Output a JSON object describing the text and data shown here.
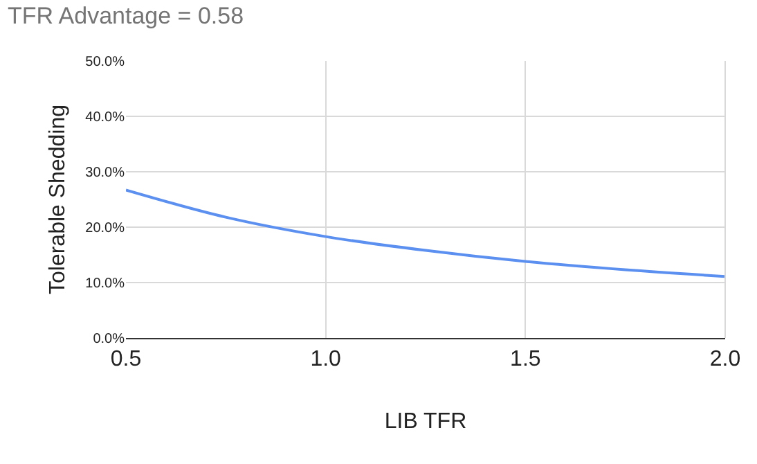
{
  "chart_data": {
    "type": "line",
    "title": "TFR Advantage = 0.58",
    "xlabel": "LIB TFR",
    "ylabel": "Tolerable Shedding",
    "x": [
      0.5,
      0.75,
      1.0,
      1.25,
      1.5,
      1.75,
      2.0
    ],
    "series": [
      {
        "color": "#5b8ff0",
        "values": [
          26.7,
          21.8,
          18.3,
          15.8,
          13.8,
          12.3,
          11.1
        ]
      }
    ],
    "xlim": [
      0.5,
      2.0
    ],
    "xticks": [
      0.5,
      {
        "value": 1.0,
        "label": "1.0"
      },
      1.5,
      {
        "value": 2.0,
        "label": "2.0"
      }
    ],
    "ylim": [
      0,
      50
    ],
    "yticks": [
      {
        "value": 0,
        "label": "0.0%"
      },
      {
        "value": 10,
        "label": "10.0%"
      },
      {
        "value": 20,
        "label": "20.0%"
      },
      {
        "value": 30,
        "label": "30.0%"
      },
      {
        "value": 40,
        "label": "40.0%"
      },
      {
        "value": 50,
        "label": "50.0%"
      }
    ],
    "grid": true,
    "marker": "none",
    "line_style": "solid"
  }
}
